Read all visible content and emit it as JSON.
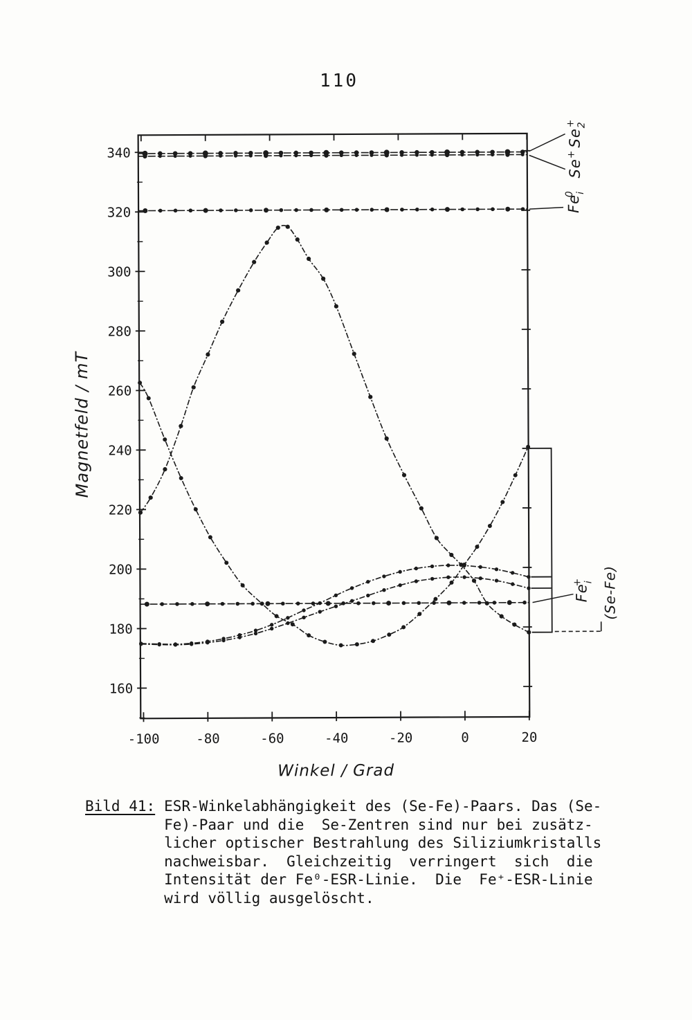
{
  "page": {
    "number": "110"
  },
  "figure": {
    "caption_label": "Bild 41:",
    "caption_lines": [
      "ESR-Winkelabhängigkeit des (Se-Fe)-Paars. Das (Se-",
      "Fe)-Paar und die  Se-Zentren sind nur bei zusätz-",
      "licher optischer Bestrahlung des Siliziumkristalls",
      "nachweisbar.  Gleichzeitig  verringert  sich  die",
      "Intensität der Fe⁰-ESR-Linie.  Die  Fe⁺-ESR-Linie",
      "wird völlig ausgelöscht."
    ]
  },
  "chart_data": {
    "type": "line",
    "xlabel": "Winkel / Grad",
    "ylabel": "Magnetfeld / mT",
    "xlim": [
      -100.9,
      20.1
    ],
    "ylim": [
      149.8,
      345.8
    ],
    "x_ticks": [
      -100,
      -80,
      -60,
      -40,
      -20,
      0,
      20
    ],
    "y_ticks": [
      160,
      180,
      200,
      220,
      240,
      260,
      280,
      300,
      320,
      340
    ],
    "y_minor_step": 10,
    "ink_color": "#1b1b1b",
    "series": [
      {
        "name": "Se+ center line",
        "type": "hline",
        "value": 339.6,
        "marker_r": 3.3,
        "marker_step": 4.7
      },
      {
        "name": "Se2+ center line",
        "type": "hline",
        "value": 338.7,
        "marker_r": 2.5,
        "marker_step": 4.7
      },
      {
        "name": "Fe_i0 line",
        "type": "hline",
        "value": 320.4,
        "marker_r": 2.8,
        "marker_step": 4.7
      },
      {
        "name": "Fe_i+ line",
        "type": "hline",
        "value": 188.2,
        "marker_r": 2.8,
        "marker_step": 4.7
      },
      {
        "name": "(Se-Fe) pair branch 1",
        "type": "curve",
        "marker_r": 3.1,
        "points": [
          [
            -100.7,
            219
          ],
          [
            -97.5,
            224
          ],
          [
            -93,
            233.5
          ],
          [
            -88,
            248
          ],
          [
            -84,
            261
          ],
          [
            -79.5,
            272
          ],
          [
            -75,
            283
          ],
          [
            -70,
            293.5
          ],
          [
            -65,
            303
          ],
          [
            -61,
            309.5
          ],
          [
            -57.5,
            314.5
          ],
          [
            -54.5,
            314.8
          ],
          [
            -51.5,
            310.5
          ],
          [
            -48,
            304
          ],
          [
            -43.5,
            297.3
          ],
          [
            -39.5,
            288
          ],
          [
            -34,
            272
          ],
          [
            -29,
            257.5
          ],
          [
            -24,
            243.5
          ],
          [
            -18.6,
            231.2
          ],
          [
            -13.3,
            220
          ],
          [
            -8.6,
            210
          ],
          [
            -4,
            204.3
          ],
          [
            -1,
            201
          ],
          [
            3,
            195.6
          ],
          [
            7,
            188
          ],
          [
            11.5,
            183.6
          ],
          [
            15.5,
            180.8
          ],
          [
            20,
            178.2
          ]
        ]
      },
      {
        "name": "(Se-Fe) pair branch 2",
        "type": "curve",
        "marker_r": 3.0,
        "points": [
          [
            -100.7,
            262.6
          ],
          [
            -98,
            257.4
          ],
          [
            -93,
            243.5
          ],
          [
            -88,
            230.5
          ],
          [
            -83.5,
            220
          ],
          [
            -79,
            210.6
          ],
          [
            -74,
            202
          ],
          [
            -69,
            194.4
          ],
          [
            -63,
            188.2
          ],
          [
            -58.5,
            184
          ],
          [
            -53.5,
            181.2
          ],
          [
            -48.5,
            177.5
          ],
          [
            -43.5,
            175.3
          ],
          [
            -38.5,
            174.1
          ],
          [
            -33.5,
            174.4
          ],
          [
            -28.5,
            175.5
          ],
          [
            -23.5,
            177.6
          ],
          [
            -19,
            180.1
          ],
          [
            -14,
            184.5
          ],
          [
            -9,
            189.5
          ],
          [
            -4,
            195
          ],
          [
            0,
            201
          ],
          [
            4,
            207
          ],
          [
            8,
            214
          ],
          [
            12,
            222
          ],
          [
            16,
            231
          ],
          [
            20,
            240.5
          ]
        ]
      },
      {
        "name": "(Se-Fe) pair branch 3",
        "type": "curve",
        "marker_r": 2.7,
        "points": [
          [
            -100.7,
            175.0
          ],
          [
            -95,
            174.8
          ],
          [
            -90,
            174.7
          ],
          [
            -85,
            175.0
          ],
          [
            -80,
            175.6
          ],
          [
            -75,
            176.5
          ],
          [
            -70,
            177.7
          ],
          [
            -65,
            179.2
          ],
          [
            -60,
            181.1
          ],
          [
            -55,
            183.4
          ],
          [
            -50,
            185.9
          ],
          [
            -45,
            188.3
          ],
          [
            -40,
            190.9
          ],
          [
            -35,
            193.3
          ],
          [
            -30,
            195.4
          ],
          [
            -25,
            197.2
          ],
          [
            -20,
            198.7
          ],
          [
            -15,
            199.8
          ],
          [
            -10,
            200.5
          ],
          [
            -5,
            200.8
          ],
          [
            0,
            200.7
          ],
          [
            5,
            200.2
          ],
          [
            10,
            199.4
          ],
          [
            15,
            198.2
          ],
          [
            20,
            196.8
          ]
        ]
      },
      {
        "name": "(Se-Fe) pair branch 4",
        "type": "curve",
        "marker_r": 2.7,
        "points": [
          [
            -100.7,
            174.8
          ],
          [
            -95,
            174.6
          ],
          [
            -90,
            174.5
          ],
          [
            -85,
            174.7
          ],
          [
            -80,
            175.2
          ],
          [
            -75,
            175.9
          ],
          [
            -70,
            176.9
          ],
          [
            -65,
            178.2
          ],
          [
            -60,
            179.8
          ],
          [
            -55,
            181.6
          ],
          [
            -50,
            183.5
          ],
          [
            -45,
            185.4
          ],
          [
            -40,
            187.2
          ],
          [
            -35,
            189.0
          ],
          [
            -30,
            190.8
          ],
          [
            -25,
            192.6
          ],
          [
            -20,
            194.2
          ],
          [
            -15,
            195.5
          ],
          [
            -10,
            196.3
          ],
          [
            -5,
            196.8
          ],
          [
            0,
            196.8
          ],
          [
            5,
            196.4
          ],
          [
            10,
            195.6
          ],
          [
            15,
            194.4
          ],
          [
            20,
            193.0
          ]
        ]
      }
    ],
    "annotations": {
      "se_label_parts": {
        "base1": "Se",
        "sup1": "+",
        "base2": "Se",
        "sub2": "2",
        "sup2": "+"
      },
      "fe0_label_parts": {
        "base": "Fe",
        "sub": "i",
        "sup": "0"
      },
      "feplus_label_parts": {
        "base": "Fe",
        "sub": "i",
        "sup": "+"
      },
      "sefe_label": "(Se-Fe)",
      "bracket_mT": [
        240.0,
        178.2
      ],
      "pair_end_ticks_mT": [
        196.8,
        193.0
      ]
    }
  }
}
